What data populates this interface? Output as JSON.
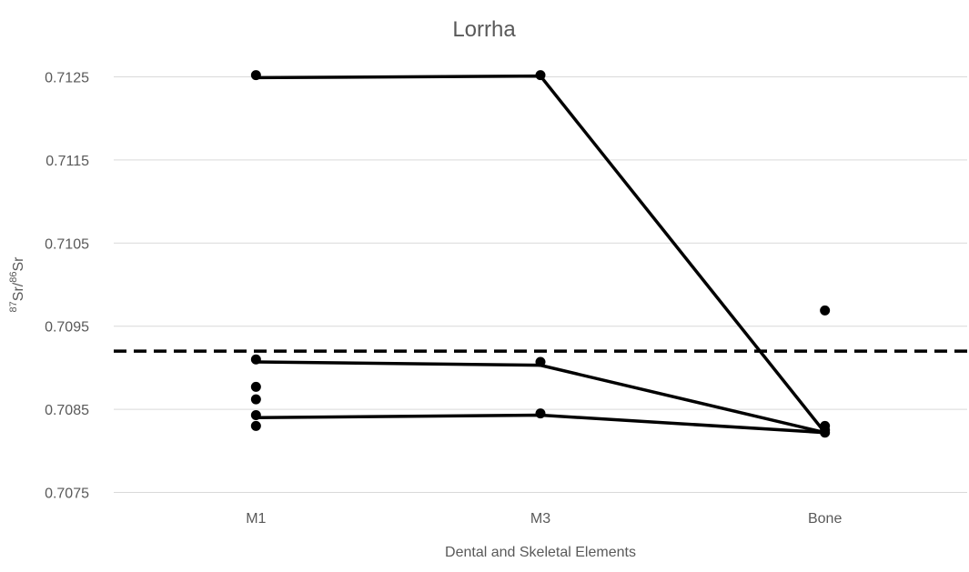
{
  "chart_data": {
    "type": "scatter",
    "title": "Lorrha",
    "xlabel": "Dental and Skeletal Elements",
    "ylabel": "87Sr/86Sr",
    "ylabel_parts": {
      "sup1": "87",
      "base1": "Sr/",
      "sup2": "86",
      "base2": "Sr"
    },
    "categories": [
      "M1",
      "M3",
      "Bone"
    ],
    "ylim": [
      0.7075,
      0.7125
    ],
    "yticks": [
      "0.7075",
      "0.7085",
      "0.7095",
      "0.7105",
      "0.7115",
      "0.7125"
    ],
    "grid": true,
    "legend": "none",
    "reference_line": 0.7092,
    "points": [
      {
        "category": "M1",
        "y": 0.71252
      },
      {
        "category": "M1",
        "y": 0.7091
      },
      {
        "category": "M1",
        "y": 0.70877
      },
      {
        "category": "M1",
        "y": 0.70862
      },
      {
        "category": "M1",
        "y": 0.70843
      },
      {
        "category": "M1",
        "y": 0.7083
      },
      {
        "category": "M3",
        "y": 0.71252
      },
      {
        "category": "M3",
        "y": 0.70907
      },
      {
        "category": "M3",
        "y": 0.70845
      },
      {
        "category": "Bone",
        "y": 0.70969
      },
      {
        "category": "Bone",
        "y": 0.7083
      },
      {
        "category": "Bone",
        "y": 0.70825
      },
      {
        "category": "Bone",
        "y": 0.70822
      }
    ],
    "linked_series": [
      {
        "values": [
          0.71249,
          0.71251,
          0.70822
        ]
      },
      {
        "values": [
          0.70907,
          0.70903,
          0.70822
        ]
      },
      {
        "values": [
          0.7084,
          0.70843,
          0.70822
        ]
      }
    ]
  }
}
